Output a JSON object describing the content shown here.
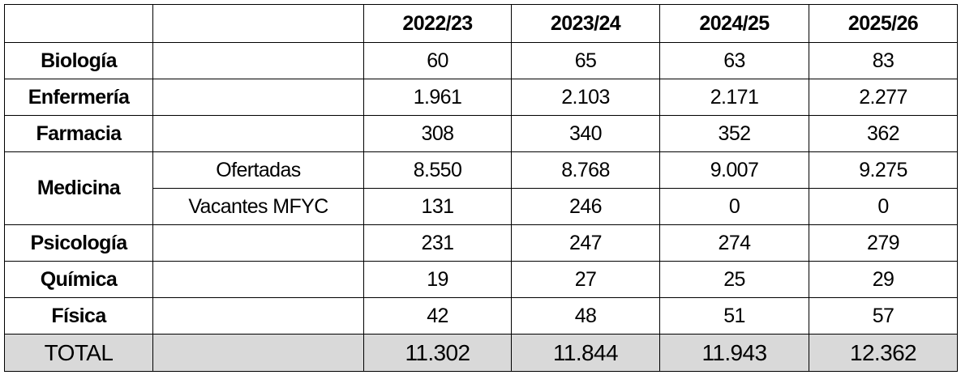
{
  "table": {
    "columns": [
      "2022/23",
      "2023/24",
      "2024/25",
      "2025/26"
    ],
    "rows": [
      {
        "label": "Biología",
        "values": [
          "60",
          "65",
          "63",
          "83"
        ]
      },
      {
        "label": "Enfermería",
        "values": [
          "1.961",
          "2.103",
          "2.171",
          "2.277"
        ]
      },
      {
        "label": "Farmacia",
        "values": [
          "308",
          "340",
          "352",
          "362"
        ]
      },
      {
        "label": "Medicina",
        "subrows": [
          {
            "label": "Ofertadas",
            "values": [
              "8.550",
              "8.768",
              "9.007",
              "9.275"
            ]
          },
          {
            "label": "Vacantes MFYC",
            "values": [
              "131",
              "246",
              "0",
              "0"
            ]
          }
        ]
      },
      {
        "label": "Psicología",
        "values": [
          "231",
          "247",
          "274",
          "279"
        ]
      },
      {
        "label": "Química",
        "values": [
          "19",
          "27",
          "25",
          "29"
        ]
      },
      {
        "label": "Física",
        "values": [
          "42",
          "48",
          "51",
          "57"
        ]
      }
    ],
    "total": {
      "label": "TOTAL",
      "values": [
        "11.302",
        "11.844",
        "11.943",
        "12.362"
      ]
    }
  }
}
